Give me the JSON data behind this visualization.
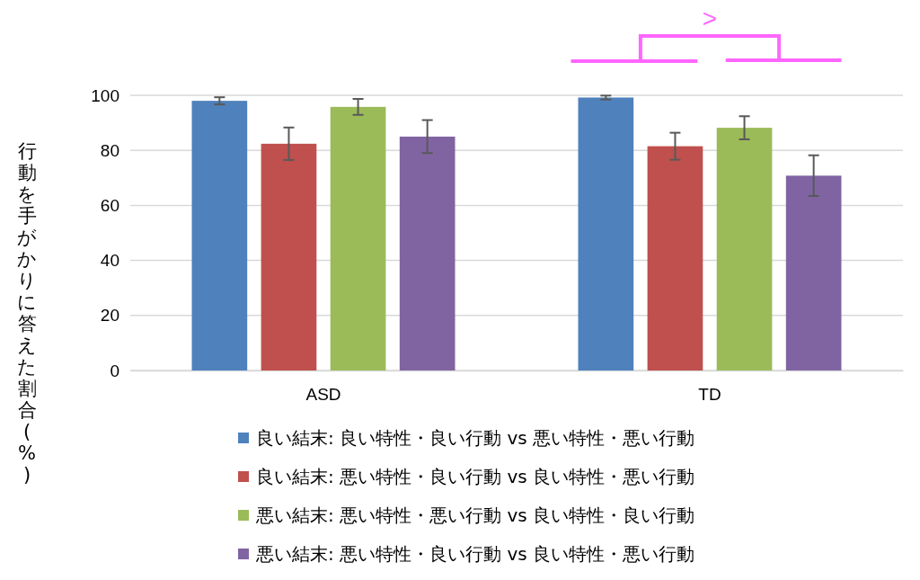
{
  "chart_data": {
    "type": "bar",
    "categories": [
      "ASD",
      "TD"
    ],
    "ylabel": "行動を手がかりに答えた割合(%)",
    "ylim": [
      0,
      100
    ],
    "yticks": [
      0,
      20,
      40,
      60,
      80,
      100
    ],
    "grid": "y",
    "legend": "bottom",
    "annotations": [
      ">"
    ],
    "series": [
      {
        "name": "良い結末: 良い特性・良い行動 vs 悪い特性・悪い行動",
        "color": "#4f81bd",
        "values": [
          98.0,
          99.2
        ],
        "errors": [
          1.3,
          0.7
        ]
      },
      {
        "name": "良い結末: 悪い特性・良い行動 vs 良い特性・悪い行動",
        "color": "#c0504d",
        "values": [
          82.4,
          81.5
        ],
        "errors": [
          5.9,
          4.9
        ]
      },
      {
        "name": "悪い結末: 悪い特性・悪い行動 vs 良い特性・良い行動",
        "color": "#9bbb59",
        "values": [
          95.8,
          88.2
        ],
        "errors": [
          2.9,
          4.2
        ]
      },
      {
        "name": "悪い結末: 悪い特性・良い行動 vs 良い特性・悪い行動",
        "color": "#8064a2",
        "values": [
          85.0,
          70.8
        ],
        "errors": [
          6.0,
          7.4
        ]
      }
    ]
  }
}
